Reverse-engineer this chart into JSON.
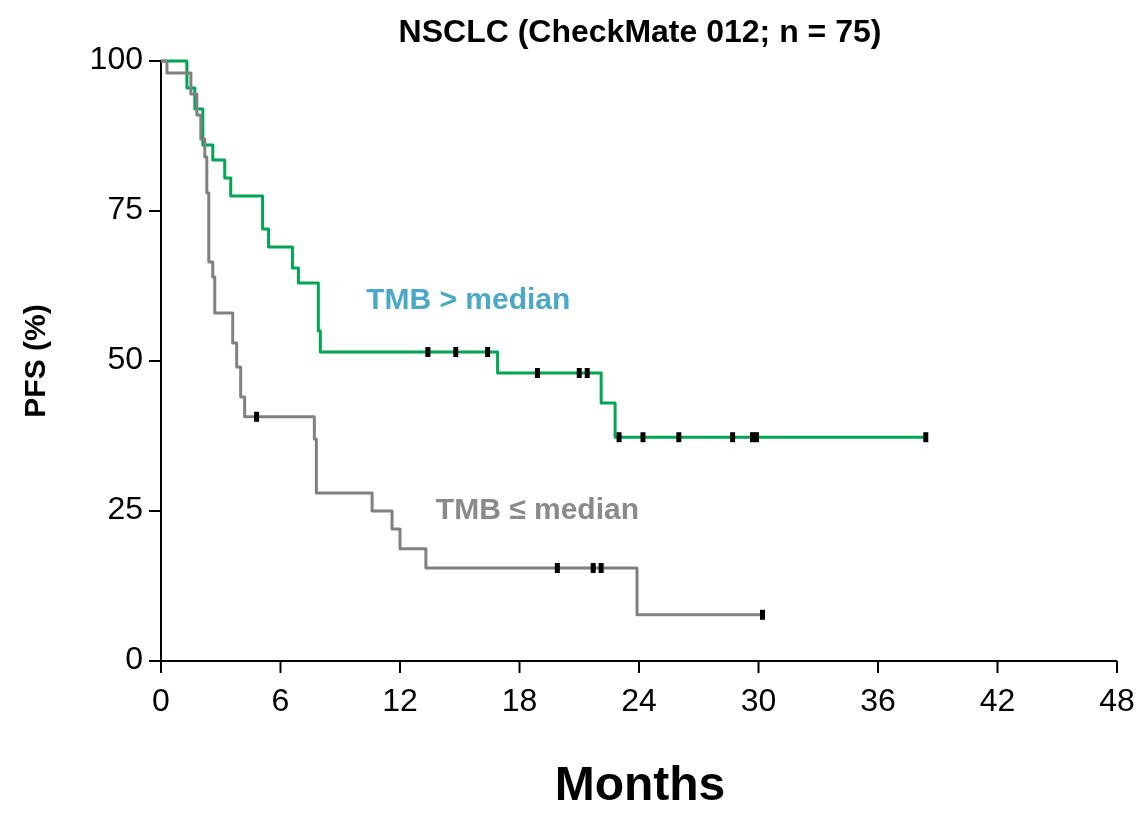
{
  "chart_data": {
    "type": "step",
    "title": "NSCLC (CheckMate 012; n = 75)",
    "xlabel": "Months",
    "ylabel": "PFS (%)",
    "xlim": [
      0,
      48
    ],
    "ylim": [
      0,
      100
    ],
    "xticks": [
      0,
      6,
      12,
      18,
      24,
      30,
      36,
      42,
      48
    ],
    "yticks": [
      0,
      25,
      50,
      75,
      100
    ],
    "grid": false,
    "series": [
      {
        "name": "TMB > median",
        "color": "#00a651",
        "x": [
          0,
          1.3,
          1.7,
          2.1,
          2.6,
          3.2,
          3.5,
          5.1,
          5.4,
          6.6,
          6.9,
          7.9,
          8.0,
          16.9,
          22.1,
          22.8,
          38.5
        ],
        "values": [
          100,
          95.5,
          92,
          86,
          83.5,
          80.5,
          77.5,
          72,
          69,
          65.5,
          63,
          55,
          51.5,
          48,
          43,
          37.3,
          37.3
        ]
      },
      {
        "name": "TMB ≤ median",
        "color": "#808080",
        "x": [
          0,
          0.3,
          1.5,
          1.8,
          2.0,
          2.2,
          2.3,
          2.4,
          2.6,
          2.7,
          3.6,
          3.8,
          4.0,
          4.2,
          7.7,
          7.8,
          10.6,
          11.6,
          12.0,
          13.3,
          23.9,
          30.2
        ],
        "values": [
          100,
          98,
          94.5,
          91,
          87,
          84,
          78,
          66.5,
          64,
          58,
          53,
          49,
          44,
          40.7,
          37,
          28,
          25,
          22,
          18.7,
          15.5,
          7.7,
          7.7
        ]
      },
      {
        "type": "scatter",
        "color": "#000000",
        "x": [
          13.4,
          14.8,
          16.4,
          18.9,
          21.0,
          21.4,
          23.0,
          24.2,
          26.0,
          28.7,
          29.7,
          29.9,
          38.4
        ],
        "values": [
          51.5,
          51.5,
          51.5,
          48,
          48,
          48,
          37.3,
          37.3,
          37.3,
          37.3,
          37.3,
          37.3,
          37.3
        ]
      },
      {
        "type": "scatter",
        "color": "#000000",
        "x": [
          4.8,
          19.9,
          21.7,
          22.1,
          30.2
        ],
        "values": [
          40.7,
          15.5,
          15.5,
          15.5,
          7.7
        ]
      }
    ]
  }
}
